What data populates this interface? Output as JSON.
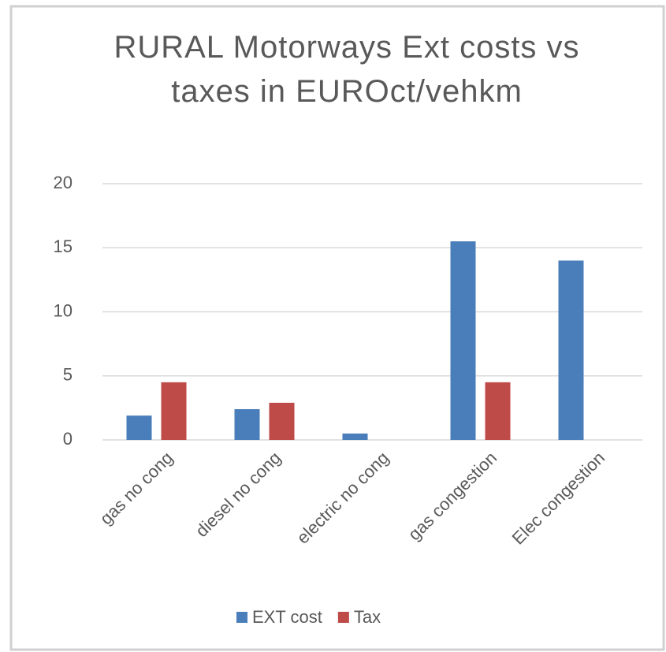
{
  "chart_data": {
    "type": "bar",
    "title": "RURAL Motorways Ext costs vs taxes in EUROct/vehkm",
    "categories": [
      "gas no cong",
      "diesel no cong",
      "electric no cong",
      "gas congestion",
      "Elec congestion"
    ],
    "series": [
      {
        "name": "EXT cost",
        "color": "#4a7ebb",
        "values": [
          1.9,
          2.4,
          0.5,
          15.5,
          14
        ]
      },
      {
        "name": "Tax",
        "color": "#be4b48",
        "values": [
          4.5,
          2.9,
          0,
          4.5,
          0
        ]
      }
    ],
    "ylim": [
      0,
      20
    ],
    "yticks": [
      0,
      5,
      10,
      15,
      20
    ],
    "grid": true,
    "legend": "bottom"
  }
}
